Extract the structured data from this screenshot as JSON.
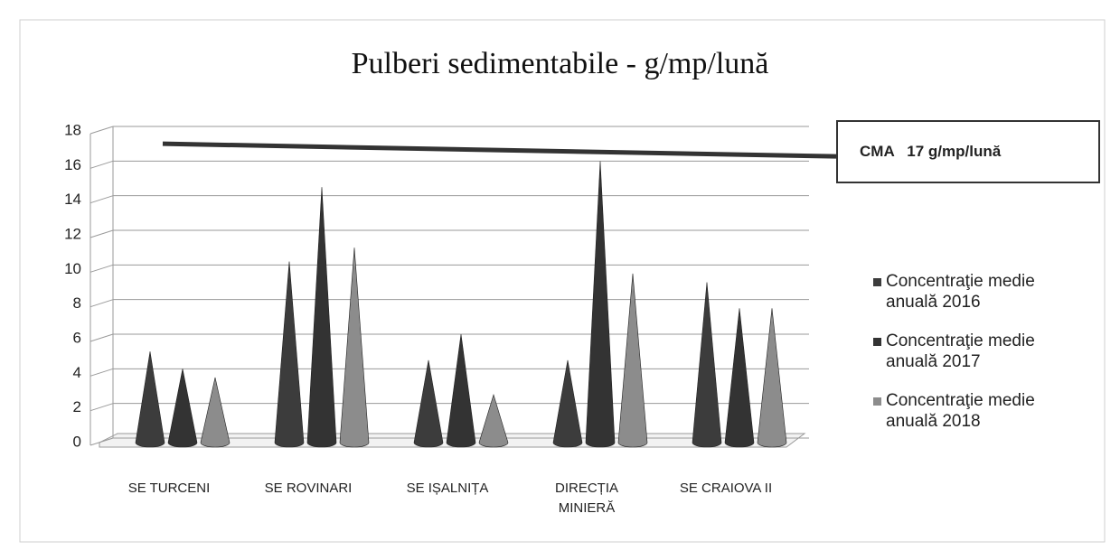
{
  "chart_data": {
    "type": "cone",
    "title": "Pulberi sedimentabile - g/mp/lună",
    "categories": [
      "SE TURCENI",
      "SE ROVINARI",
      "SE IȘALNIȚA",
      "DIRECȚIA MINIERĂ",
      "SE CRAIOVA II"
    ],
    "series": [
      {
        "name": "Concentraţie medie anuală 2016",
        "color": "#3c3c3c",
        "values": [
          5.0,
          10.2,
          4.5,
          4.5,
          9.0
        ]
      },
      {
        "name": "Concentraţie medie anuală 2017",
        "color": "#333333",
        "values": [
          4.0,
          14.5,
          6.0,
          16.0,
          7.5
        ]
      },
      {
        "name": "Concentraţie medie anuală 2018",
        "color": "#8c8c8c",
        "values": [
          3.5,
          11.0,
          2.5,
          9.5,
          7.5
        ]
      }
    ],
    "ylim": [
      0,
      18
    ],
    "yticks": [
      0,
      2,
      4,
      6,
      8,
      10,
      12,
      14,
      16,
      18
    ],
    "grid": true,
    "reference_line": {
      "value": 17,
      "label": "CMA   17 g/mp/lună"
    },
    "legend": "right"
  }
}
